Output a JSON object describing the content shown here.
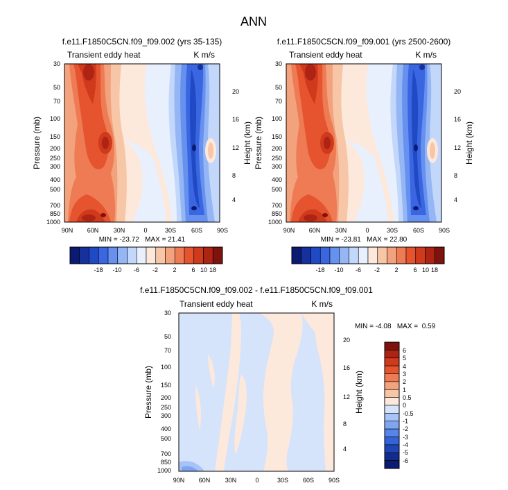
{
  "page_title": "ANN",
  "chart_data": [
    {
      "type": "heatmap",
      "title": "f.e11.F1850C5CN.f09_f09.002 (yrs 35-135)",
      "left_string": "Transient eddy heat",
      "right_string": "K m/s",
      "ylabel": "Pressure (mb)",
      "ylabel_right": "Height (km)",
      "x_ticks": [
        "90N",
        "60N",
        "30N",
        "0",
        "30S",
        "60S",
        "90S"
      ],
      "y_ticks": [
        "30",
        "50",
        "70",
        "100",
        "150",
        "200",
        "250",
        "300",
        "400",
        "500",
        "700",
        "850",
        "1000"
      ],
      "height_ticks": [
        "20",
        "16",
        "12",
        "8",
        "4"
      ],
      "stats": "MIN = -23.72   MAX = 21.41",
      "colorbar": {
        "orientation": "horizontal",
        "labels": [
          "-18",
          "-10",
          "-6",
          "-2",
          "2",
          "6",
          "10",
          "18"
        ],
        "colors": [
          "#0b1a72",
          "#16309e",
          "#2049c4",
          "#3a66e2",
          "#6691ee",
          "#94b6f5",
          "#c3d7fb",
          "#e8f0fd",
          "#fde8dc",
          "#f7c6a6",
          "#f3a27e",
          "#ee7b54",
          "#e6532f",
          "#cf3a1c",
          "#ad2414",
          "#7e120c"
        ]
      }
    },
    {
      "type": "heatmap",
      "title": "f.e11.F1850C5CN.f09_f09.001 (yrs 2500-2600)",
      "left_string": "Transient eddy heat",
      "right_string": "K m/s",
      "ylabel": "Pressure (mb)",
      "ylabel_right": "Height (km)",
      "x_ticks": [
        "90N",
        "60N",
        "30N",
        "0",
        "30S",
        "60S",
        "90S"
      ],
      "y_ticks": [
        "30",
        "50",
        "70",
        "100",
        "150",
        "200",
        "250",
        "300",
        "400",
        "500",
        "700",
        "850",
        "1000"
      ],
      "height_ticks": [
        "20",
        "16",
        "12",
        "8",
        "4"
      ],
      "stats": "MIN = -23.81   MAX = 22.80",
      "colorbar": {
        "orientation": "horizontal",
        "labels": [
          "-18",
          "-10",
          "-6",
          "-2",
          "2",
          "6",
          "10",
          "18"
        ]
      }
    },
    {
      "type": "heatmap",
      "title": "f.e11.F1850C5CN.f09_f09.002 - f.e11.F1850C5CN.f09_f09.001",
      "left_string": "Transient eddy heat",
      "right_string": "K m/s",
      "ylabel": "Pressure (mb)",
      "ylabel_right": "Height (km)",
      "x_ticks": [
        "90N",
        "60N",
        "30N",
        "0",
        "30S",
        "60S",
        "90S"
      ],
      "y_ticks": [
        "30",
        "50",
        "70",
        "100",
        "150",
        "200",
        "250",
        "300",
        "400",
        "500",
        "700",
        "850",
        "1000"
      ],
      "height_ticks": [
        "20",
        "16",
        "12",
        "8",
        "4"
      ],
      "stats": "MIN = -4.08   MAX =  0.59",
      "colorbar": {
        "orientation": "vertical",
        "labels": [
          "6",
          "5",
          "4",
          "3",
          "2",
          "1",
          "0.5",
          "0",
          "-0.5",
          "-1",
          "-2",
          "-3",
          "-4",
          "-5",
          "-6"
        ],
        "colors": [
          "#7e120c",
          "#ad2414",
          "#cf3a1c",
          "#e6532f",
          "#ee7b54",
          "#f3a27e",
          "#f7c6a6",
          "#fde8dc",
          "#d5e4fb",
          "#a7c3f7",
          "#7fa5f1",
          "#5784e6",
          "#3463d8",
          "#1f44b3",
          "#142b8e",
          "#0b1a72"
        ]
      }
    }
  ]
}
